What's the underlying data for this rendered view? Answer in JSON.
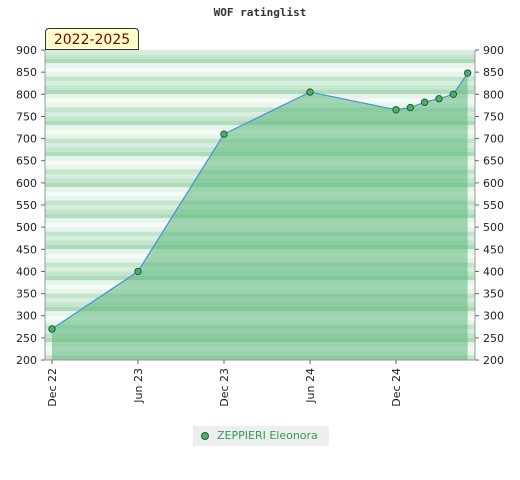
{
  "chart_data": {
    "type": "area",
    "title": "WOF ratinglist",
    "period_label": "2022-2025",
    "xlabel": "",
    "ylabel": "",
    "ylim": [
      200,
      900
    ],
    "y_ticks": [
      "900",
      "850",
      "800",
      "750",
      "700",
      "650",
      "600",
      "550",
      "500",
      "450",
      "400",
      "350",
      "300",
      "250",
      "200"
    ],
    "x_ticks": [
      {
        "label": "Dec 22",
        "month": 0
      },
      {
        "label": "Jun 23",
        "month": 6
      },
      {
        "label": "Dec 23",
        "month": 12
      },
      {
        "label": "Jun 24",
        "month": 18
      },
      {
        "label": "Dec 24",
        "month": 24
      }
    ],
    "series": [
      {
        "name": "ZEPPIERI Eleonora",
        "color": "#4caf6e",
        "points": [
          {
            "date": "Dec 2022",
            "month": 0,
            "value": 270
          },
          {
            "date": "Jun 2023",
            "month": 6,
            "value": 400
          },
          {
            "date": "Dec 2023",
            "month": 12,
            "value": 710
          },
          {
            "date": "Jun 2024",
            "month": 18,
            "value": 805
          },
          {
            "date": "Dec 2024",
            "month": 24,
            "value": 765
          },
          {
            "date": "Jan 2025",
            "month": 25,
            "value": 770
          },
          {
            "date": "Feb 2025",
            "month": 26,
            "value": 782
          },
          {
            "date": "Mar 2025",
            "month": 27,
            "value": 790
          },
          {
            "date": "Apr 2025",
            "month": 28,
            "value": 800
          },
          {
            "date": "May 2025",
            "month": 29,
            "value": 848
          }
        ]
      }
    ],
    "grid": true,
    "legend_position": "bottom",
    "colors": {
      "line": "#4a90d9",
      "area": "#5cb87a",
      "marker_fill": "#4caf6e",
      "marker_stroke": "#1f5f2f",
      "band_light": "#f4faf6",
      "band_dark": "#7cc494"
    }
  }
}
